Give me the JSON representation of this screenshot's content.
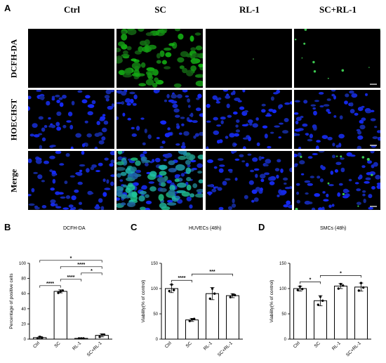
{
  "panel_a": {
    "letter": "A",
    "columns": [
      "Ctrl",
      "SC",
      "RL-1",
      "SC+RL-1"
    ],
    "rows": [
      "DCFH-DA",
      "HOECHST",
      "Merge"
    ]
  },
  "panel_b": {
    "letter": "B",
    "title": "DCFH-DA"
  },
  "panel_c": {
    "letter": "C",
    "title": "HUVECs (48h)"
  },
  "panel_d": {
    "letter": "D",
    "title": "SMCs (48h)"
  },
  "chart_data": [
    {
      "type": "bar",
      "title": "DCFH-DA",
      "categories": [
        "Ctrl",
        "SC",
        "RL-1",
        "SC+RL-1"
      ],
      "values": [
        2,
        63,
        1,
        5
      ],
      "errors": [
        1.5,
        2,
        0.5,
        2
      ],
      "points": [
        [
          1,
          3,
          2
        ],
        [
          61,
          63,
          64
        ],
        [
          1,
          1,
          1
        ],
        [
          3,
          6,
          6
        ]
      ],
      "ylabel": "Percentage of positive cells",
      "ylim": [
        0,
        100
      ],
      "yticks": [
        0,
        20,
        40,
        60,
        80,
        100
      ],
      "significance": [
        {
          "from": 0,
          "to": 1,
          "label": "****"
        },
        {
          "from": 1,
          "to": 2,
          "label": "****"
        },
        {
          "from": 2,
          "to": 3,
          "label": "*"
        },
        {
          "from": 1,
          "to": 3,
          "label": "****"
        },
        {
          "from": 0,
          "to": 3,
          "label": "*"
        }
      ]
    },
    {
      "type": "bar",
      "title": "HUVECs (48h)",
      "categories": [
        "Ctrl",
        "SC",
        "RL-1",
        "SC+RL-1"
      ],
      "values": [
        100,
        38,
        90,
        86
      ],
      "errors": [
        8,
        3,
        12,
        4
      ],
      "points": [
        [
          95,
          108,
          97
        ],
        [
          36,
          39,
          40
        ],
        [
          80,
          100,
          90
        ],
        [
          83,
          88,
          87
        ]
      ],
      "ylabel": "Viability(% of control)",
      "ylim": [
        0,
        150
      ],
      "yticks": [
        0,
        50,
        100,
        150
      ],
      "significance": [
        {
          "from": 0,
          "to": 1,
          "label": "****"
        },
        {
          "from": 1,
          "to": 3,
          "label": "***"
        }
      ]
    },
    {
      "type": "bar",
      "title": "SMCs (48h)",
      "categories": [
        "Ctrl",
        "SC",
        "RL-1",
        "SC+RL-1"
      ],
      "values": [
        100,
        76,
        105,
        103
      ],
      "errors": [
        5,
        10,
        5,
        8
      ],
      "points": [
        [
          97,
          104,
          99
        ],
        [
          68,
          84,
          76
        ],
        [
          100,
          109,
          106
        ],
        [
          96,
          111,
          102
        ]
      ],
      "ylabel": "Viability(% of control)",
      "ylim": [
        0,
        150
      ],
      "yticks": [
        0,
        50,
        100,
        150
      ],
      "significance": [
        {
          "from": 0,
          "to": 1,
          "label": "*"
        },
        {
          "from": 1,
          "to": 3,
          "label": "*"
        }
      ]
    }
  ]
}
